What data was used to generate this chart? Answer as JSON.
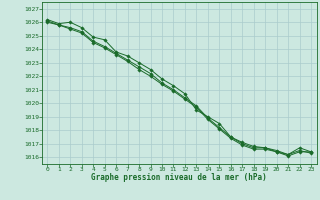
{
  "xlabel": "Graphe pression niveau de la mer (hPa)",
  "bg_color": "#cce8e0",
  "grid_color": "#aacccc",
  "line_color": "#1a6b2a",
  "x_ticks": [
    0,
    1,
    2,
    3,
    4,
    5,
    6,
    7,
    8,
    9,
    10,
    11,
    12,
    13,
    14,
    15,
    16,
    17,
    18,
    19,
    20,
    21,
    22,
    23
  ],
  "ylim": [
    1015.5,
    1027.5
  ],
  "xlim": [
    -0.5,
    23.5
  ],
  "yticks": [
    1016,
    1017,
    1018,
    1019,
    1020,
    1021,
    1022,
    1023,
    1024,
    1025,
    1026,
    1027
  ],
  "series": [
    [
      1026.2,
      1025.9,
      1026.0,
      1025.6,
      1024.9,
      1024.7,
      1023.8,
      1023.5,
      1023.0,
      1022.5,
      1021.8,
      1021.3,
      1020.7,
      1019.5,
      1019.0,
      1018.5,
      1017.5,
      1017.1,
      1016.8,
      1016.7,
      1016.4,
      1016.1,
      1016.4,
      1016.4
    ],
    [
      1026.0,
      1025.8,
      1025.6,
      1025.3,
      1024.6,
      1024.2,
      1023.7,
      1023.2,
      1022.7,
      1022.2,
      1021.5,
      1021.0,
      1020.4,
      1019.8,
      1018.9,
      1018.2,
      1017.5,
      1017.0,
      1016.7,
      1016.7,
      1016.5,
      1016.2,
      1016.5,
      1016.3
    ],
    [
      1026.1,
      1025.8,
      1025.5,
      1025.2,
      1024.5,
      1024.1,
      1023.6,
      1023.1,
      1022.5,
      1022.0,
      1021.4,
      1020.9,
      1020.3,
      1019.7,
      1018.8,
      1018.1,
      1017.4,
      1016.9,
      1016.6,
      1016.6,
      1016.4,
      1016.2,
      1016.7,
      1016.4
    ]
  ]
}
